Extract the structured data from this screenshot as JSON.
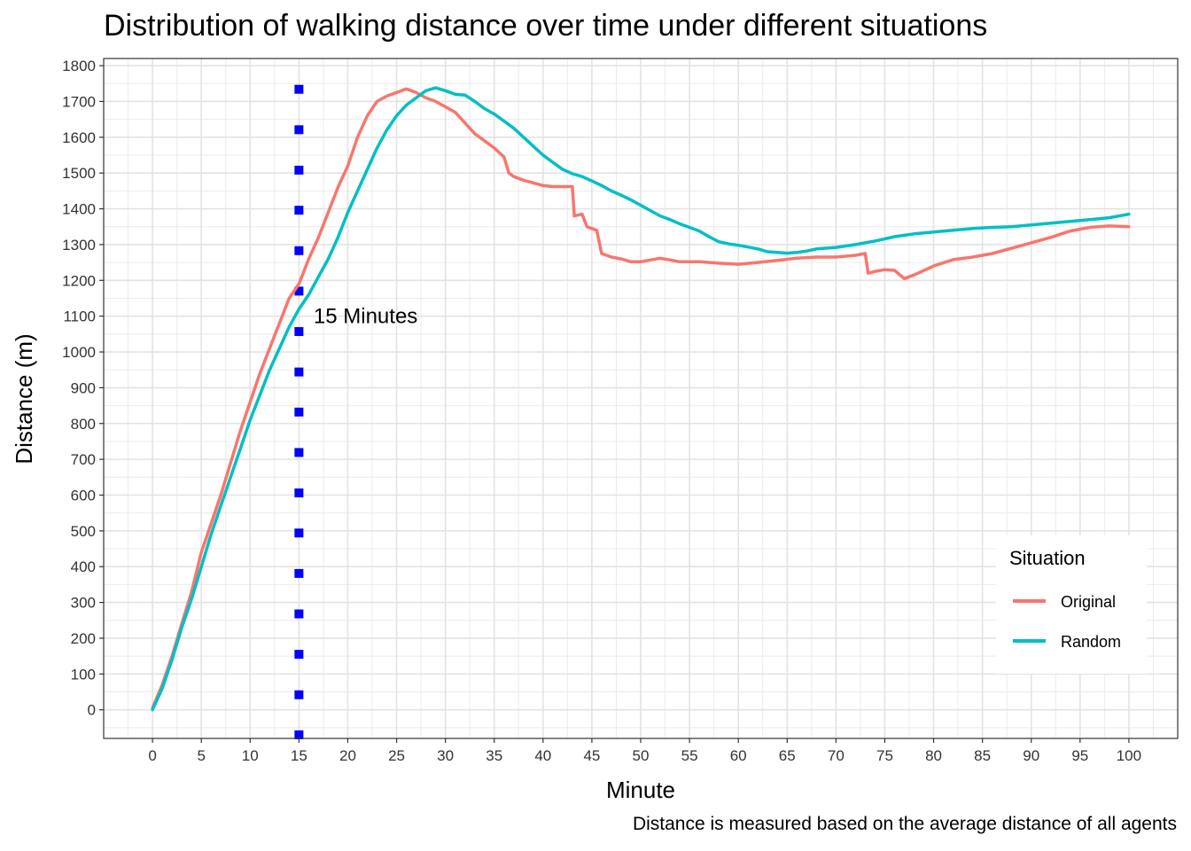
{
  "chart_data": {
    "type": "line",
    "title": "Distribution of walking distance over time under different situations",
    "caption": "Distance is measured based on the average distance of all agents",
    "xlabel": "Minute",
    "ylabel": "Distance (m)",
    "xlim": [
      -5,
      105
    ],
    "ylim": [
      -80,
      1820
    ],
    "xticks": [
      0,
      5,
      10,
      15,
      20,
      25,
      30,
      35,
      40,
      45,
      50,
      55,
      60,
      65,
      70,
      75,
      80,
      85,
      90,
      95,
      100
    ],
    "yticks": [
      0,
      100,
      200,
      300,
      400,
      500,
      600,
      700,
      800,
      900,
      1000,
      1100,
      1200,
      1300,
      1400,
      1500,
      1600,
      1700,
      1800
    ],
    "grid": true,
    "legend": {
      "title": "Situation",
      "position": "bottom-right"
    },
    "series": [
      {
        "name": "Original",
        "color": "#F8766D",
        "points": [
          [
            0,
            5
          ],
          [
            1,
            70
          ],
          [
            2,
            150
          ],
          [
            3,
            240
          ],
          [
            4,
            330
          ],
          [
            5,
            440
          ],
          [
            6,
            520
          ],
          [
            7,
            600
          ],
          [
            8,
            690
          ],
          [
            9,
            780
          ],
          [
            10,
            860
          ],
          [
            11,
            940
          ],
          [
            12,
            1010
          ],
          [
            13,
            1080
          ],
          [
            14,
            1150
          ],
          [
            15,
            1190
          ],
          [
            16,
            1260
          ],
          [
            17,
            1320
          ],
          [
            18,
            1390
          ],
          [
            19,
            1460
          ],
          [
            20,
            1520
          ],
          [
            21,
            1600
          ],
          [
            22,
            1660
          ],
          [
            23,
            1700
          ],
          [
            24,
            1715
          ],
          [
            25,
            1725
          ],
          [
            26,
            1735
          ],
          [
            27,
            1725
          ],
          [
            28,
            1710
          ],
          [
            29,
            1700
          ],
          [
            30,
            1685
          ],
          [
            31,
            1670
          ],
          [
            32,
            1640
          ],
          [
            33,
            1610
          ],
          [
            34,
            1590
          ],
          [
            35,
            1570
          ],
          [
            36,
            1545
          ],
          [
            36.5,
            1500
          ],
          [
            37,
            1490
          ],
          [
            38,
            1480
          ],
          [
            40,
            1465
          ],
          [
            41,
            1462
          ],
          [
            43,
            1462
          ],
          [
            43.2,
            1380
          ],
          [
            44,
            1385
          ],
          [
            44.5,
            1350
          ],
          [
            45.5,
            1340
          ],
          [
            46,
            1275
          ],
          [
            47,
            1265
          ],
          [
            48,
            1260
          ],
          [
            49,
            1252
          ],
          [
            50,
            1252
          ],
          [
            52,
            1262
          ],
          [
            54,
            1252
          ],
          [
            56,
            1252
          ],
          [
            58,
            1248
          ],
          [
            60,
            1245
          ],
          [
            62,
            1250
          ],
          [
            64,
            1256
          ],
          [
            66,
            1262
          ],
          [
            68,
            1265
          ],
          [
            70,
            1265
          ],
          [
            72,
            1270
          ],
          [
            73,
            1275
          ],
          [
            73.3,
            1220
          ],
          [
            74,
            1225
          ],
          [
            75,
            1230
          ],
          [
            76,
            1228
          ],
          [
            77,
            1205
          ],
          [
            78,
            1215
          ],
          [
            80,
            1240
          ],
          [
            82,
            1258
          ],
          [
            84,
            1265
          ],
          [
            86,
            1275
          ],
          [
            88,
            1290
          ],
          [
            90,
            1305
          ],
          [
            92,
            1320
          ],
          [
            94,
            1338
          ],
          [
            96,
            1348
          ],
          [
            98,
            1352
          ],
          [
            100,
            1350
          ]
        ]
      },
      {
        "name": "Random",
        "color": "#00BFC4",
        "points": [
          [
            0,
            0
          ],
          [
            1,
            60
          ],
          [
            2,
            140
          ],
          [
            3,
            230
          ],
          [
            4,
            310
          ],
          [
            5,
            400
          ],
          [
            6,
            490
          ],
          [
            7,
            570
          ],
          [
            8,
            650
          ],
          [
            9,
            730
          ],
          [
            10,
            810
          ],
          [
            11,
            880
          ],
          [
            12,
            950
          ],
          [
            13,
            1010
          ],
          [
            14,
            1070
          ],
          [
            15,
            1120
          ],
          [
            16,
            1160
          ],
          [
            17,
            1210
          ],
          [
            18,
            1260
          ],
          [
            19,
            1320
          ],
          [
            20,
            1390
          ],
          [
            21,
            1450
          ],
          [
            22,
            1510
          ],
          [
            23,
            1570
          ],
          [
            24,
            1620
          ],
          [
            25,
            1660
          ],
          [
            26,
            1690
          ],
          [
            27,
            1710
          ],
          [
            28,
            1730
          ],
          [
            29,
            1738
          ],
          [
            30,
            1730
          ],
          [
            31,
            1720
          ],
          [
            32,
            1718
          ],
          [
            33,
            1700
          ],
          [
            34,
            1680
          ],
          [
            35,
            1665
          ],
          [
            36,
            1645
          ],
          [
            37,
            1625
          ],
          [
            38,
            1600
          ],
          [
            39,
            1575
          ],
          [
            40,
            1550
          ],
          [
            41,
            1530
          ],
          [
            42,
            1510
          ],
          [
            43,
            1498
          ],
          [
            44,
            1490
          ],
          [
            45,
            1478
          ],
          [
            46,
            1465
          ],
          [
            47,
            1450
          ],
          [
            48,
            1438
          ],
          [
            49,
            1425
          ],
          [
            50,
            1410
          ],
          [
            51,
            1395
          ],
          [
            52,
            1380
          ],
          [
            53,
            1370
          ],
          [
            54,
            1358
          ],
          [
            55,
            1348
          ],
          [
            56,
            1338
          ],
          [
            57,
            1322
          ],
          [
            58,
            1308
          ],
          [
            59,
            1302
          ],
          [
            60,
            1298
          ],
          [
            61,
            1293
          ],
          [
            62,
            1288
          ],
          [
            63,
            1280
          ],
          [
            64,
            1278
          ],
          [
            65,
            1276
          ],
          [
            66,
            1278
          ],
          [
            67,
            1282
          ],
          [
            68,
            1288
          ],
          [
            70,
            1292
          ],
          [
            72,
            1300
          ],
          [
            74,
            1310
          ],
          [
            76,
            1322
          ],
          [
            78,
            1330
          ],
          [
            80,
            1335
          ],
          [
            82,
            1340
          ],
          [
            84,
            1345
          ],
          [
            86,
            1348
          ],
          [
            88,
            1350
          ],
          [
            90,
            1355
          ],
          [
            92,
            1360
          ],
          [
            94,
            1365
          ],
          [
            96,
            1370
          ],
          [
            98,
            1375
          ],
          [
            100,
            1385
          ]
        ]
      }
    ],
    "reference_line": {
      "x": 15,
      "color": "#0000FF",
      "style": "dotted",
      "markers_y": [
        -70,
        42,
        155,
        268,
        381,
        494,
        606,
        719,
        832,
        944,
        1057,
        1170,
        1283,
        1396,
        1508,
        1621,
        1734
      ],
      "label": "15 Minutes",
      "label_at": [
        16.5,
        1100
      ]
    }
  }
}
